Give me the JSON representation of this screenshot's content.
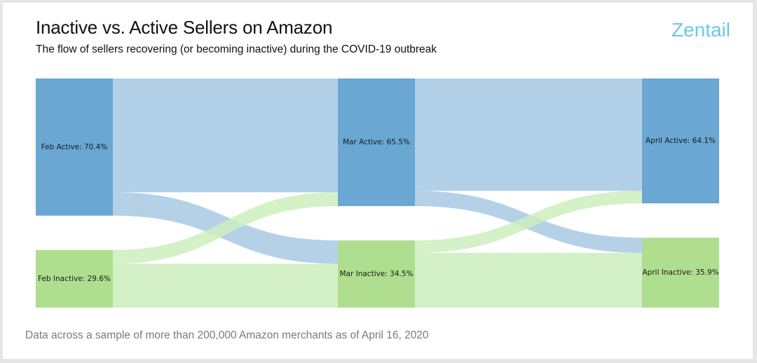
{
  "header": {
    "title": "Inactive vs. Active Sellers on Amazon",
    "subtitle": "The flow of sellers recovering (or becoming inactive) during the COVID-19 outbreak",
    "logo": "Zentail"
  },
  "footnote": "Data across a sample of more than 200,000 Amazon merchants as of April 16, 2020",
  "colors": {
    "active_node": "#6aa7d3",
    "inactive_node": "#aede8e",
    "active_link": "#b2d0e8",
    "inactive_link": "#d3f0c6",
    "active_cross_link": "#a8c9e4",
    "inactive_cross_link": "#cdeebd"
  },
  "chart_data": {
    "type": "sankey",
    "title": "Inactive vs. Active Sellers on Amazon",
    "unit": "%",
    "columns": [
      {
        "month": "Feb",
        "nodes": [
          {
            "id": "feb_active",
            "label": "Feb Active: 70.4%",
            "kind": "active",
            "value": 70.4
          },
          {
            "id": "feb_inactive",
            "label": "Feb Inactive: 29.6%",
            "kind": "inactive",
            "value": 29.6
          }
        ]
      },
      {
        "month": "Mar",
        "nodes": [
          {
            "id": "mar_active",
            "label": "Mar Active: 65.5%",
            "kind": "active",
            "value": 65.5
          },
          {
            "id": "mar_inactive",
            "label": "Mar Inactive: 34.5%",
            "kind": "inactive",
            "value": 34.5
          }
        ]
      },
      {
        "month": "April",
        "nodes": [
          {
            "id": "apr_active",
            "label": "April Active: 64.1%",
            "kind": "active",
            "value": 64.1
          },
          {
            "id": "apr_inactive",
            "label": "April Inactive: 35.9%",
            "kind": "inactive",
            "value": 35.9
          }
        ]
      }
    ],
    "links": [
      {
        "source": "feb_active",
        "target": "mar_active",
        "value": 58.4
      },
      {
        "source": "feb_active",
        "target": "mar_inactive",
        "value": 12.0
      },
      {
        "source": "feb_inactive",
        "target": "mar_active",
        "value": 7.1
      },
      {
        "source": "feb_inactive",
        "target": "mar_inactive",
        "value": 22.5
      },
      {
        "source": "mar_active",
        "target": "apr_active",
        "value": 57.7
      },
      {
        "source": "mar_active",
        "target": "apr_inactive",
        "value": 7.8
      },
      {
        "source": "mar_inactive",
        "target": "apr_active",
        "value": 6.4
      },
      {
        "source": "mar_inactive",
        "target": "apr_inactive",
        "value": 28.1
      }
    ]
  }
}
